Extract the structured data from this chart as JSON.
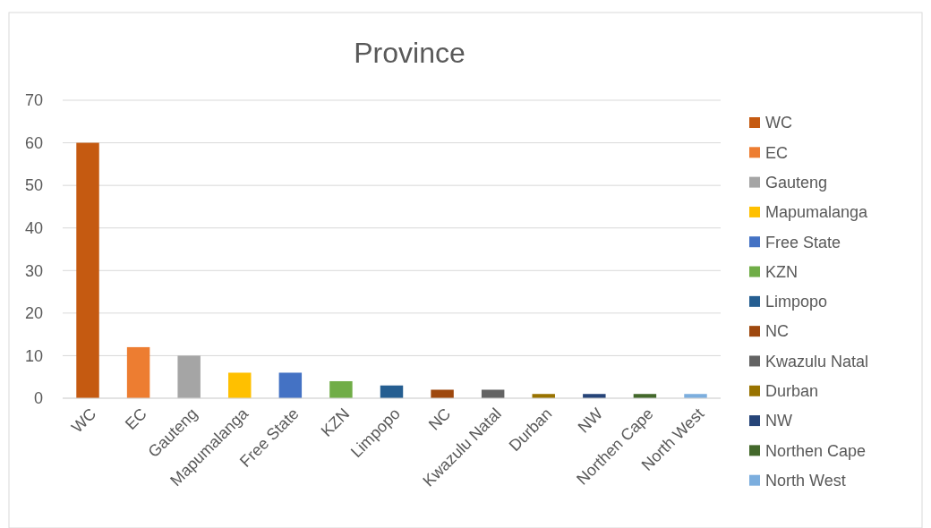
{
  "chart_data": {
    "type": "bar",
    "title": "Province",
    "categories": [
      "WC",
      "EC",
      "Gauteng",
      "Mapumalanga",
      "Free State",
      "KZN",
      "Limpopo",
      "NC",
      "Kwazulu Natal",
      "Durban",
      "NW",
      "Northen Cape",
      "North West"
    ],
    "series": [
      {
        "name": "WC",
        "color": "#c55a11",
        "values": [
          60,
          null,
          null,
          null,
          null,
          null,
          null,
          null,
          null,
          null,
          null,
          null,
          null
        ]
      },
      {
        "name": "EC",
        "color": "#ed7d31",
        "values": [
          null,
          12,
          null,
          null,
          null,
          null,
          null,
          null,
          null,
          null,
          null,
          null,
          null
        ]
      },
      {
        "name": "Gauteng",
        "color": "#a5a5a5",
        "values": [
          null,
          null,
          10,
          null,
          null,
          null,
          null,
          null,
          null,
          null,
          null,
          null,
          null
        ]
      },
      {
        "name": "Mapumalanga",
        "color": "#ffc000",
        "values": [
          null,
          null,
          null,
          6,
          null,
          null,
          null,
          null,
          null,
          null,
          null,
          null,
          null
        ]
      },
      {
        "name": "Free State",
        "color": "#4472c4",
        "values": [
          null,
          null,
          null,
          null,
          6,
          null,
          null,
          null,
          null,
          null,
          null,
          null,
          null
        ]
      },
      {
        "name": "KZN",
        "color": "#70ad47",
        "values": [
          null,
          null,
          null,
          null,
          null,
          4,
          null,
          null,
          null,
          null,
          null,
          null,
          null
        ]
      },
      {
        "name": "Limpopo",
        "color": "#255e91",
        "values": [
          null,
          null,
          null,
          null,
          null,
          null,
          3,
          null,
          null,
          null,
          null,
          null,
          null
        ]
      },
      {
        "name": "NC",
        "color": "#9e480e",
        "values": [
          null,
          null,
          null,
          null,
          null,
          null,
          null,
          2,
          null,
          null,
          null,
          null,
          null
        ]
      },
      {
        "name": "Kwazulu Natal",
        "color": "#636363",
        "values": [
          null,
          null,
          null,
          null,
          null,
          null,
          null,
          null,
          2,
          null,
          null,
          null,
          null
        ]
      },
      {
        "name": "Durban",
        "color": "#997300",
        "values": [
          null,
          null,
          null,
          null,
          null,
          null,
          null,
          null,
          null,
          1,
          null,
          null,
          null
        ]
      },
      {
        "name": "NW",
        "color": "#264478",
        "values": [
          null,
          null,
          null,
          null,
          null,
          null,
          null,
          null,
          null,
          null,
          1,
          null,
          null
        ]
      },
      {
        "name": "Northen Cape",
        "color": "#43682b",
        "values": [
          null,
          null,
          null,
          null,
          null,
          null,
          null,
          null,
          null,
          null,
          null,
          1,
          null
        ]
      },
      {
        "name": "North West",
        "color": "#7caede",
        "values": [
          null,
          null,
          null,
          null,
          null,
          null,
          null,
          null,
          null,
          null,
          null,
          null,
          1
        ]
      }
    ],
    "ylim": [
      0,
      70
    ],
    "yticks": [
      0,
      10,
      20,
      30,
      40,
      50,
      60,
      70
    ],
    "grid": "y",
    "legend": "right"
  }
}
